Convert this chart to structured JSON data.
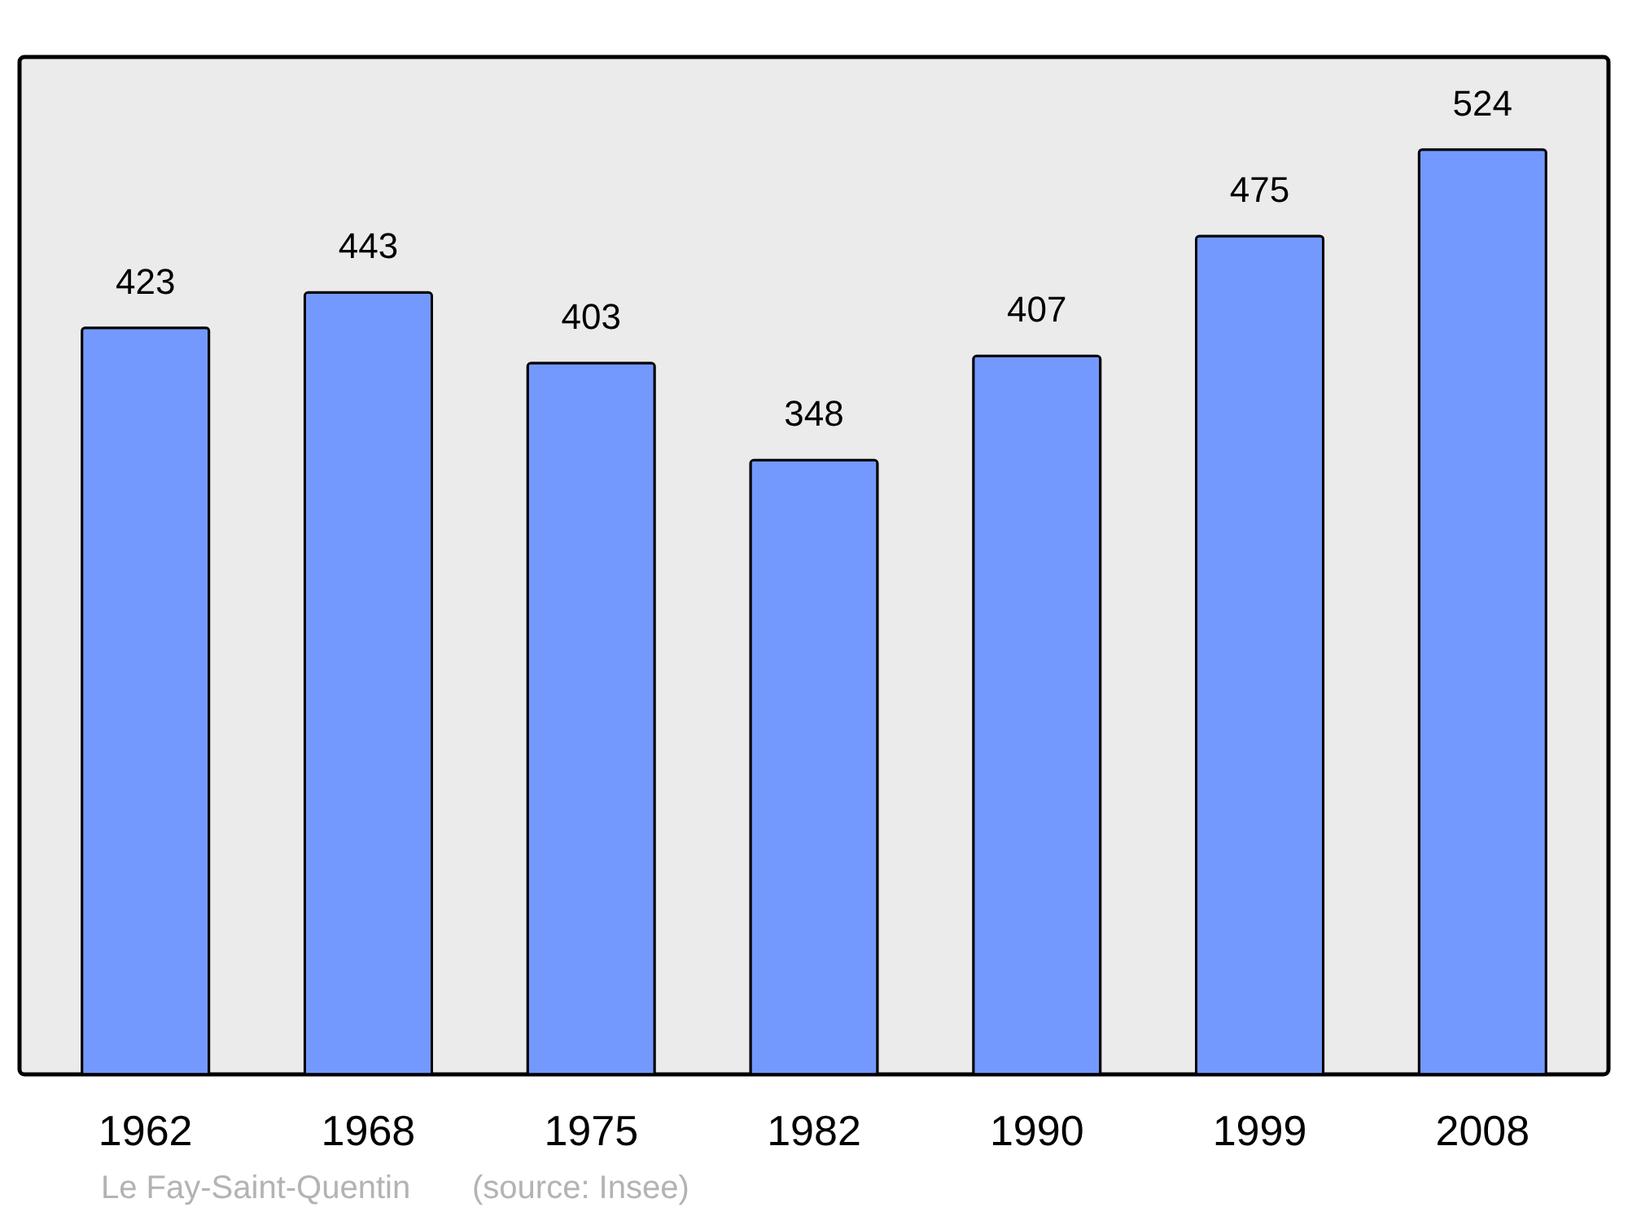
{
  "chart_data": {
    "type": "bar",
    "categories": [
      "1962",
      "1968",
      "1975",
      "1982",
      "1990",
      "1999",
      "2008"
    ],
    "values": [
      423,
      443,
      403,
      348,
      407,
      475,
      524
    ],
    "color": "#7399ff",
    "data_labels": true,
    "grid": false,
    "annotations": [
      "Le Fay-Saint-Quentin",
      "(source: Insee)"
    ]
  }
}
